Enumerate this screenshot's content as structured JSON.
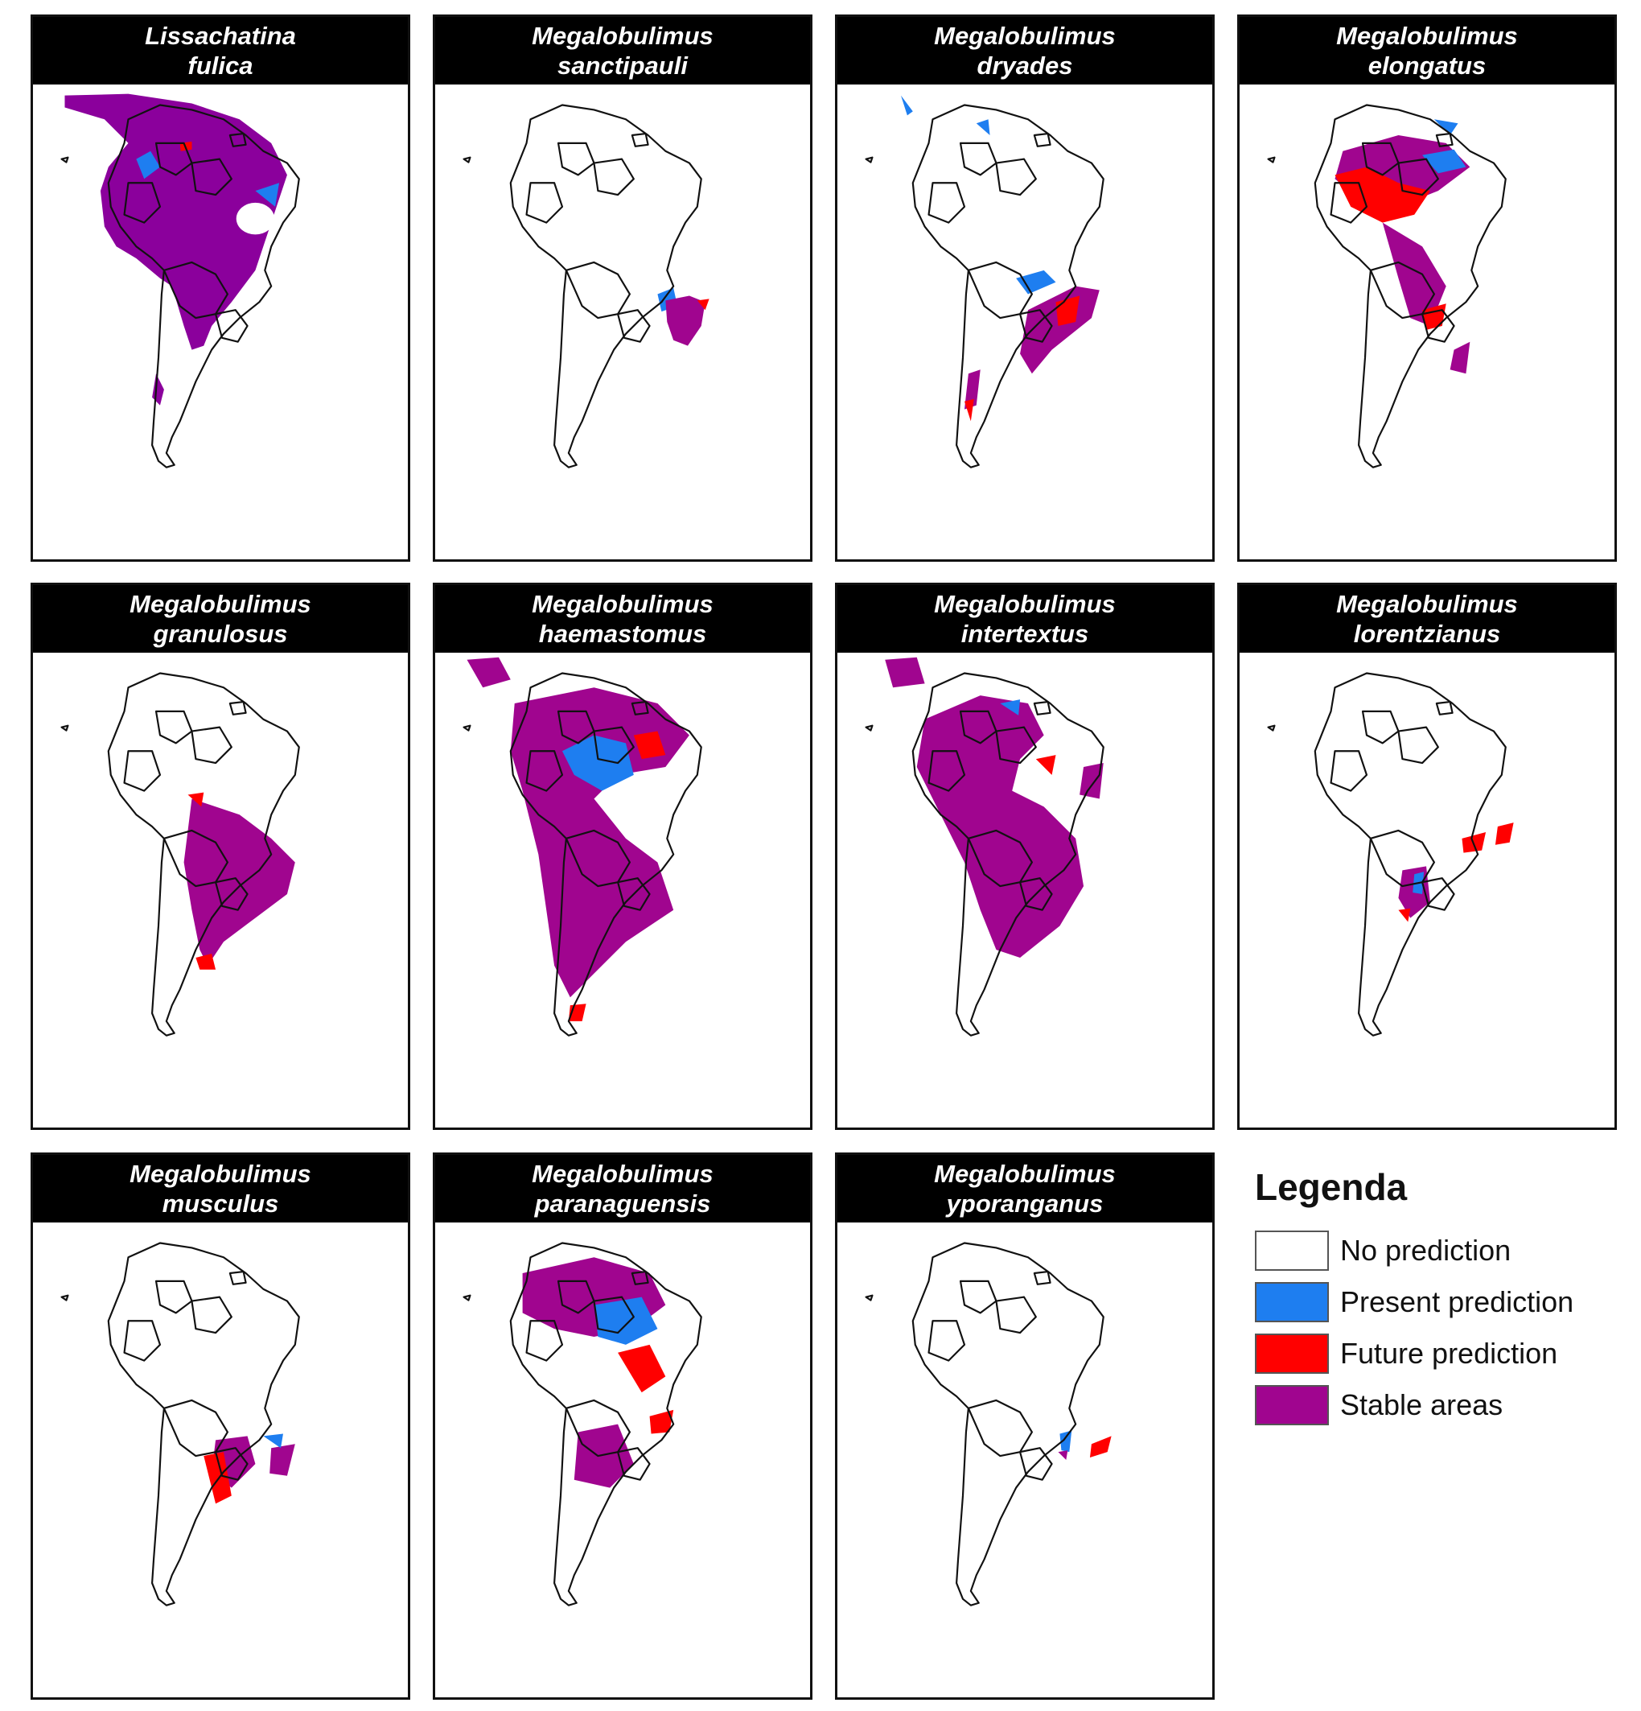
{
  "panels": [
    {
      "line1": "Lissachatina",
      "line2": "fulica"
    },
    {
      "line1": "Megalobulimus",
      "line2": "sanctipauli"
    },
    {
      "line1": "Megalobulimus",
      "line2": "dryades"
    },
    {
      "line1": "Megalobulimus",
      "line2": "elongatus"
    },
    {
      "line1": "Megalobulimus",
      "line2": "granulosus"
    },
    {
      "line1": "Megalobulimus",
      "line2": "haemastomus"
    },
    {
      "line1": "Megalobulimus",
      "line2": "intertextus"
    },
    {
      "line1": "Megalobulimus",
      "line2": "lorentzianus"
    },
    {
      "line1": "Megalobulimus",
      "line2": "musculus"
    },
    {
      "line1": "Megalobulimus",
      "line2": "paranaguensis"
    },
    {
      "line1": "Megalobulimus",
      "line2": "yporanganus"
    }
  ],
  "legend": {
    "title": "Legenda",
    "items": [
      {
        "label": "No prediction",
        "color": "#ffffff"
      },
      {
        "label": "Present prediction",
        "color": "#1e7ef0"
      },
      {
        "label": "Future prediction",
        "color": "#ff0000"
      },
      {
        "label": "Stable areas",
        "color": "#a0058f"
      }
    ]
  },
  "colors": {
    "present": "#1e7ef0",
    "future": "#ff0000",
    "stable": "#a0058f",
    "fulica_stable": "#8b009c",
    "outline": "#111111"
  }
}
